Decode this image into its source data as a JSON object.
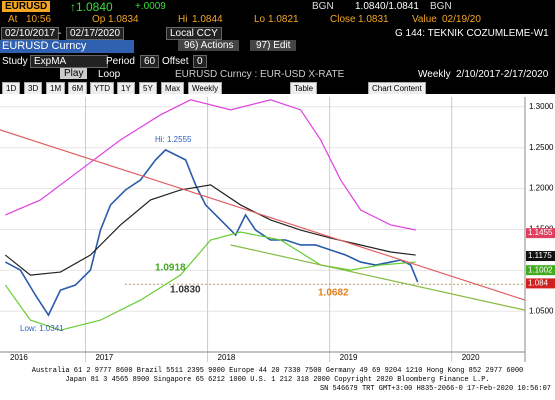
{
  "header": {
    "ticker": "EURUSD",
    "last": "↑1.0840",
    "change": "+.0009",
    "bid_src": "BGN",
    "quote": "1.0840/1.0841",
    "ask_src": "BGN",
    "at_label": "At",
    "time": "10:56",
    "op_label": "Op",
    "op": "1.0834",
    "hi_label": "Hi",
    "hi": "1.0844",
    "lo_label": "Lo",
    "lo": "1.0821",
    "close_label": "Close",
    "close": "1.0831",
    "value_label": "Value",
    "value_date": "02/19/20"
  },
  "toolbar": {
    "start": "02/10/2017",
    "dash": "-",
    "end": "02/17/2020",
    "ccy": "Local CCY",
    "page": "G 144: TEKNIK COZUMLEME-W1",
    "security": "EURUSD Curncy",
    "actions": "96) Actions",
    "edit": "97) Edit",
    "study_label": "Study",
    "study": "ExpMA",
    "period_label": "Period",
    "period": "60",
    "offset_label": "Offset",
    "offset": "0",
    "play": "Play",
    "loop": "Loop",
    "chart_name": "EURUSD Curncy : EUR-USD X-RATE",
    "freq": "Weekly",
    "range": "2/10/2017-2/17/2020",
    "tabs": [
      "1D",
      "3D",
      "1M",
      "6M",
      "YTD",
      "1Y",
      "5Y",
      "Max",
      "Weekly"
    ],
    "table": "Table",
    "chart_content": "Chart Content"
  },
  "chart_data": {
    "type": "line",
    "xlim": [
      2016.3,
      2020.6
    ],
    "xticks": [
      2016,
      2017,
      2018,
      2019,
      2020
    ],
    "ylim": [
      1.005,
      1.312
    ],
    "yticks": [
      {
        "value": 1.05,
        "label": "1.0500"
      },
      {
        "value": 1.1,
        "label": "1.1000"
      },
      {
        "value": 1.15,
        "label": "1.1500"
      },
      {
        "value": 1.2,
        "label": "1.2000"
      },
      {
        "value": 1.25,
        "label": "1.2500"
      },
      {
        "value": 1.3,
        "label": "1.3000"
      }
    ],
    "series": [
      {
        "color": "#2a5caa",
        "x": [
          2016.344,
          2016.467,
          2016.59,
          2016.697,
          2016.795,
          2016.918,
          2017.041,
          2017.123,
          2017.205,
          2017.328,
          2017.451,
          2017.574,
          2017.656,
          2017.738,
          2017.82,
          2017.902,
          2017.984,
          2018.066,
          2018.148,
          2018.23,
          2018.311,
          2018.393,
          2018.516,
          2018.639,
          2018.762,
          2018.885,
          2019.008,
          2019.131,
          2019.254,
          2019.377,
          2019.5,
          2019.582,
          2019.664,
          2019.721
        ],
        "values": [
          1.1101,
          1.1003,
          1.0697,
          1.0452,
          1.0758,
          1.082,
          1.1003,
          1.1493,
          1.18,
          1.1983,
          1.2106,
          1.2351,
          1.2473,
          1.2412,
          1.2351,
          1.2045,
          1.18,
          1.1677,
          1.1555,
          1.1432,
          1.1677,
          1.1493,
          1.1371,
          1.1371,
          1.131,
          1.131,
          1.1248,
          1.1187,
          1.1101,
          1.1065,
          1.1101,
          1.1126,
          1.1065,
          1.0856
        ]
      },
      {
        "color": "#222222",
        "x": [
          2016.344,
          2016.549,
          2016.795,
          2017.041,
          2017.287,
          2017.533,
          2017.779,
          2018.025,
          2018.27,
          2018.516,
          2018.762,
          2019.008,
          2019.254,
          2019.5,
          2019.705
        ],
        "values": [
          1.1187,
          1.0942,
          1.0979,
          1.1187,
          1.1555,
          1.1861,
          1.1983,
          1.2045,
          1.18,
          1.1616,
          1.1493,
          1.1395,
          1.131,
          1.1224,
          1.1187
        ]
      },
      {
        "color": "#e040e0",
        "x": [
          2016.344,
          2016.631,
          2016.959,
          2017.287,
          2017.615,
          2017.861,
          2018.189,
          2018.516,
          2018.762,
          2018.926,
          2019.09,
          2019.254,
          2019.5,
          2019.705
        ],
        "values": [
          1.1677,
          1.1861,
          1.2228,
          1.2596,
          1.2902,
          1.3086,
          1.2963,
          1.3086,
          1.2963,
          1.2596,
          1.2106,
          1.1738,
          1.1555,
          1.1493
        ]
      },
      {
        "color": "#66cc33",
        "x": [
          2016.344,
          2016.549,
          2016.795,
          2017.123,
          2017.451,
          2017.779,
          2018.025,
          2018.27,
          2018.598,
          2018.926,
          2019.172,
          2019.418,
          2019.705
        ],
        "values": [
          1.082,
          1.0391,
          1.0268,
          1.0391,
          1.0636,
          1.0942,
          1.1371,
          1.1469,
          1.1371,
          1.1065,
          1.1003,
          1.1065,
          1.1101
        ]
      },
      {
        "color": "#e06060",
        "x": [
          2016.3,
          2020.6
        ],
        "values": [
          1.2718,
          1.0636
        ]
      },
      {
        "color": "#88bb44",
        "x": [
          2018.189,
          2020.6
        ],
        "values": [
          1.131,
          1.0513
        ]
      }
    ],
    "levels": [
      {
        "value": 1.083,
        "color": "#b0a060"
      }
    ],
    "annotations": [
      "Hi: 1.2555",
      "Low: 1.0341",
      "1.0918",
      "1.0830",
      "1.0682"
    ],
    "axis_markers": [
      {
        "value": 1.1455,
        "color": "#e04060"
      },
      {
        "value": 1.1175,
        "color": "#111111"
      },
      {
        "value": 1.1002,
        "color": "#44aa22"
      },
      {
        "value": 1.084,
        "color": "#d02020"
      }
    ]
  },
  "footer": [
    "Australia 61 2 9777 8600 Brazil 5511 2395 9000 Europe 44 20 7330 7500 Germany 49 69 9204 1210 Hong Kong 852 2977 6000",
    "Japan 81 3 4565 8900        Singapore 65 6212 1000        U.S. 1 212 318 2000        Copyright 2020 Bloomberg Finance L.P.",
    "SN 546679 TRT  GMT+3:00 H835-2066-0 17-Feb-2020 10:56:07"
  ]
}
